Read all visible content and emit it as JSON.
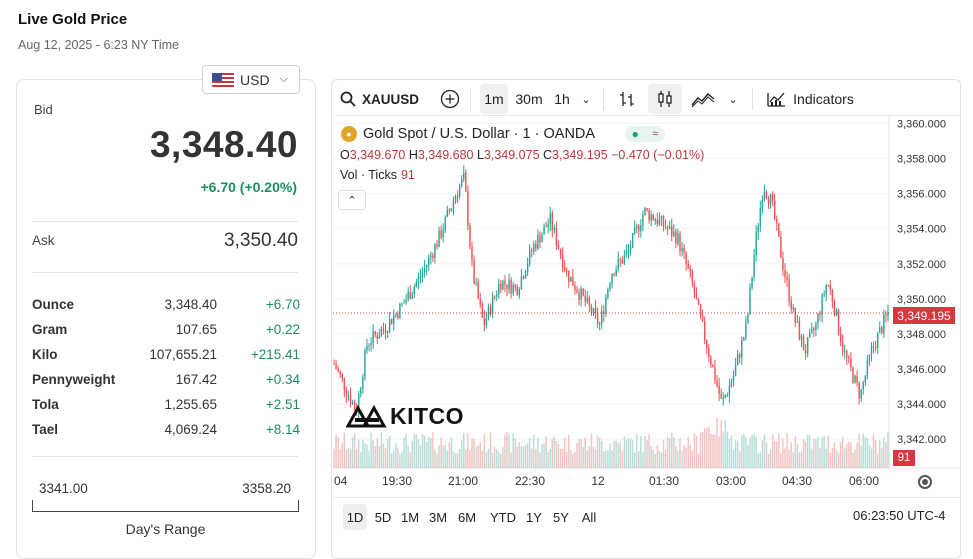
{
  "header": {
    "title": "Live Gold Price",
    "timestamp": "Aug 12, 2025 - 6:23 NY Time"
  },
  "currency": {
    "selected": "USD",
    "icon": "us-flag-icon"
  },
  "quote": {
    "bid_label": "Bid",
    "bid": "3,348.40",
    "change": "+6.70 (+0.20%)",
    "ask_label": "Ask",
    "ask": "3,350.40"
  },
  "units": [
    {
      "unit": "Ounce",
      "price": "3,348.40",
      "change": "+6.70"
    },
    {
      "unit": "Gram",
      "price": "107.65",
      "change": "+0.22"
    },
    {
      "unit": "Kilo",
      "price": "107,655.21",
      "change": "+215.41"
    },
    {
      "unit": "Pennyweight",
      "price": "167.42",
      "change": "+0.34"
    },
    {
      "unit": "Tola",
      "price": "1,255.65",
      "change": "+2.51"
    },
    {
      "unit": "Tael",
      "price": "4,069.24",
      "change": "+8.14"
    }
  ],
  "days_range": {
    "low": "3341.00",
    "high": "3358.20",
    "label": "Day's Range"
  },
  "toolbar": {
    "symbol": "XAUUSD",
    "intervals": [
      "1m",
      "30m",
      "1h"
    ],
    "active_interval": "1m",
    "indicators_label": "Indicators"
  },
  "legend": {
    "title": "Gold Spot / U.S. Dollar · 1 · OANDA",
    "o_label": "O",
    "o": "3,349.670",
    "h_label": "H",
    "h": "3,349.680",
    "l_label": "L",
    "l": "3,349.075",
    "c_label": "C",
    "c": "3,349.195",
    "change": "−0.470 (−0.01%)",
    "volume_label": "Vol · Ticks",
    "volume": "91"
  },
  "current_price_tag": "3,349.195",
  "volume_tag": "91",
  "logo_text": "KITCO",
  "ranges": [
    "1D",
    "5D",
    "1M",
    "3M",
    "6M",
    "YTD",
    "1Y",
    "5Y",
    "All"
  ],
  "active_range": "1D",
  "clock": "06:23:50 UTC-4",
  "colors": {
    "up": "#26a69a",
    "down": "#ef5350",
    "price_tag": "#d9363e",
    "positive": "#1d8f5e"
  },
  "chart_data": {
    "type": "candlestick",
    "x_tick_labels": [
      ":04",
      "19:30",
      "21:00",
      "22:30",
      "12",
      "01:30",
      "03:00",
      "04:30",
      "06:00"
    ],
    "y_tick_labels": [
      "3,360.000",
      "3,358.000",
      "3,356.000",
      "3,354.000",
      "3,352.000",
      "3,350.000",
      "3,348.000",
      "3,346.000",
      "3,344.000",
      "3,342.000"
    ],
    "ylim": [
      3341.5,
      3360.2
    ],
    "current_price": 3349.195,
    "price_path": [
      {
        "t": 0,
        "p": 3346.3
      },
      {
        "t": 0.02,
        "p": 3345.0
      },
      {
        "t": 0.04,
        "p": 3343.6
      },
      {
        "t": 0.06,
        "p": 3347.5
      },
      {
        "t": 0.09,
        "p": 3348.3
      },
      {
        "t": 0.12,
        "p": 3349.5
      },
      {
        "t": 0.16,
        "p": 3351.5
      },
      {
        "t": 0.19,
        "p": 3353.5
      },
      {
        "t": 0.22,
        "p": 3356.0
      },
      {
        "t": 0.235,
        "p": 3356.9
      },
      {
        "t": 0.25,
        "p": 3351.5
      },
      {
        "t": 0.27,
        "p": 3348.5
      },
      {
        "t": 0.3,
        "p": 3351.0
      },
      {
        "t": 0.33,
        "p": 3350.6
      },
      {
        "t": 0.36,
        "p": 3353.0
      },
      {
        "t": 0.39,
        "p": 3354.5
      },
      {
        "t": 0.42,
        "p": 3351.5
      },
      {
        "t": 0.45,
        "p": 3350.0
      },
      {
        "t": 0.48,
        "p": 3348.5
      },
      {
        "t": 0.5,
        "p": 3351.5
      },
      {
        "t": 0.53,
        "p": 3352.6
      },
      {
        "t": 0.56,
        "p": 3355.0
      },
      {
        "t": 0.58,
        "p": 3354.6
      },
      {
        "t": 0.62,
        "p": 3353.5
      },
      {
        "t": 0.645,
        "p": 3351.0
      },
      {
        "t": 0.66,
        "p": 3349.0
      },
      {
        "t": 0.68,
        "p": 3346.5
      },
      {
        "t": 0.7,
        "p": 3344.0
      },
      {
        "t": 0.72,
        "p": 3345.5
      },
      {
        "t": 0.745,
        "p": 3348.5
      },
      {
        "t": 0.76,
        "p": 3353.0
      },
      {
        "t": 0.775,
        "p": 3356.5
      },
      {
        "t": 0.79,
        "p": 3355.5
      },
      {
        "t": 0.81,
        "p": 3352.0
      },
      {
        "t": 0.83,
        "p": 3349.0
      },
      {
        "t": 0.85,
        "p": 3347.0
      },
      {
        "t": 0.87,
        "p": 3348.5
      },
      {
        "t": 0.89,
        "p": 3351.0
      },
      {
        "t": 0.9,
        "p": 3350.0
      },
      {
        "t": 0.92,
        "p": 3347.0
      },
      {
        "t": 0.95,
        "p": 3344.5
      },
      {
        "t": 0.97,
        "p": 3347.0
      },
      {
        "t": 1.0,
        "p": 3349.2
      }
    ]
  }
}
